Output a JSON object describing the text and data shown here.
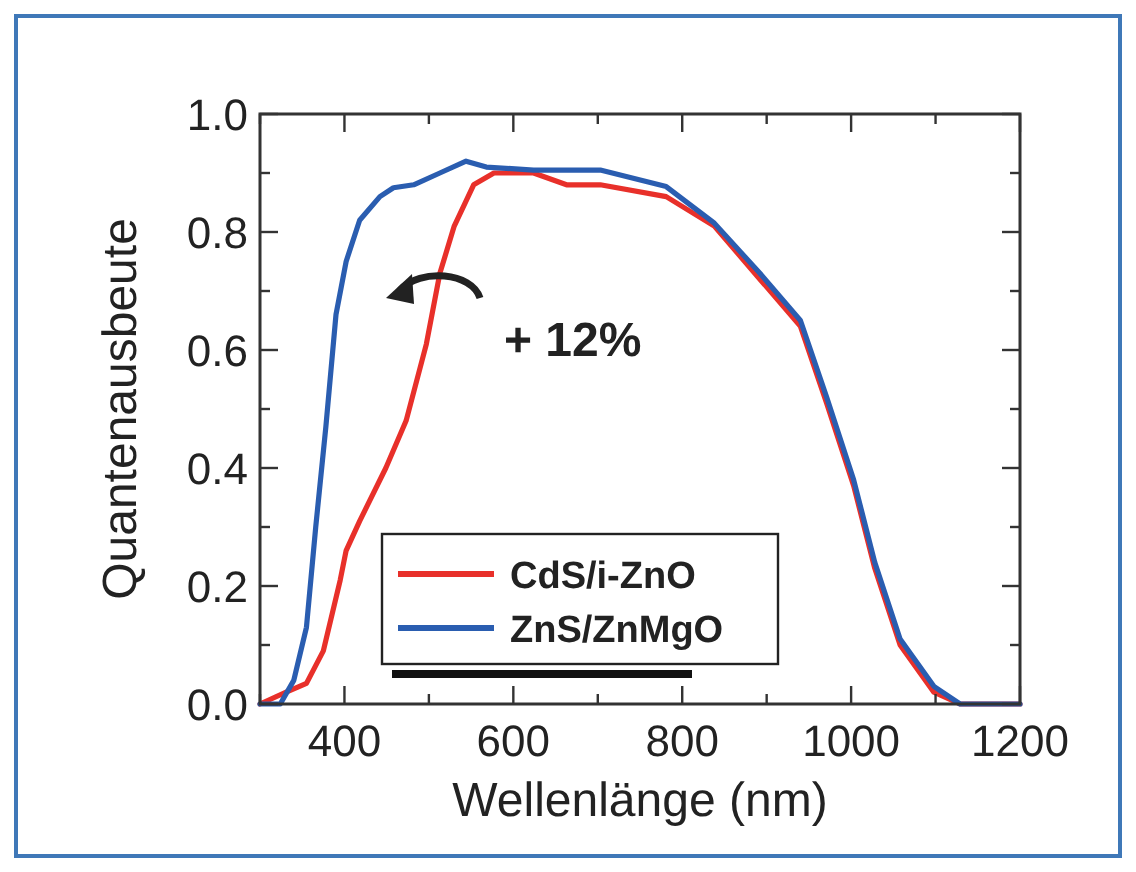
{
  "chart_data": {
    "type": "line",
    "xlabel": "Wellenlänge (nm)",
    "ylabel": "Quantenausbeute",
    "xlim": [
      300,
      1200
    ],
    "ylim": [
      0,
      1
    ],
    "xticks": [
      {
        "value": 300,
        "label": null
      },
      400,
      {
        "value": 500,
        "label": null
      },
      600,
      {
        "value": 700,
        "label": null
      },
      800,
      {
        "value": 900,
        "label": null
      },
      1000,
      {
        "value": 1100,
        "label": null
      },
      1200
    ],
    "yticks": [
      {
        "value": 0,
        "label": "0.0"
      },
      {
        "value": 0.1,
        "label": null
      },
      0.2,
      {
        "value": 0.3,
        "label": null
      },
      0.4,
      {
        "value": 0.5,
        "label": null
      },
      0.6,
      {
        "value": 0.7,
        "label": null
      },
      0.8,
      {
        "value": 0.9,
        "label": null
      },
      {
        "value": 1,
        "label": "1.0"
      }
    ],
    "legend": "bottom",
    "grid": false,
    "marker": "none",
    "line_style": "solid",
    "annotations": [
      "+ 12%"
    ],
    "series": [
      {
        "name": "CdS/i-ZnO",
        "color": "#e8302a",
        "x": [
          300,
          331,
          355,
          375,
          395,
          402,
          418,
          449,
          473,
          497,
          513,
          530,
          553,
          577,
          624,
          663,
          703,
          781,
          838,
          892,
          940,
          971,
          1003,
          1028,
          1058,
          1098,
          1129,
          1200
        ],
        "values": [
          0,
          0.02,
          0.035,
          0.09,
          0.21,
          0.26,
          0.31,
          0.4,
          0.48,
          0.61,
          0.73,
          0.81,
          0.88,
          0.9,
          0.9,
          0.88,
          0.88,
          0.86,
          0.81,
          0.72,
          0.64,
          0.51,
          0.37,
          0.23,
          0.1,
          0.02,
          0,
          0
        ]
      },
      {
        "name": "ZnS/ZnMgO",
        "color": "#2a5db0",
        "x": [
          300,
          324,
          340,
          355,
          366,
          378,
          390,
          402,
          418,
          442,
          458,
          482,
          513,
          544,
          568,
          624,
          703,
          781,
          838,
          892,
          940,
          971,
          1003,
          1028,
          1058,
          1098,
          1129,
          1200
        ],
        "values": [
          0,
          0,
          0.04,
          0.13,
          0.3,
          0.47,
          0.66,
          0.75,
          0.82,
          0.86,
          0.875,
          0.88,
          0.9,
          0.92,
          0.91,
          0.905,
          0.905,
          0.877,
          0.815,
          0.73,
          0.65,
          0.52,
          0.38,
          0.24,
          0.11,
          0.03,
          0,
          0
        ]
      }
    ]
  }
}
